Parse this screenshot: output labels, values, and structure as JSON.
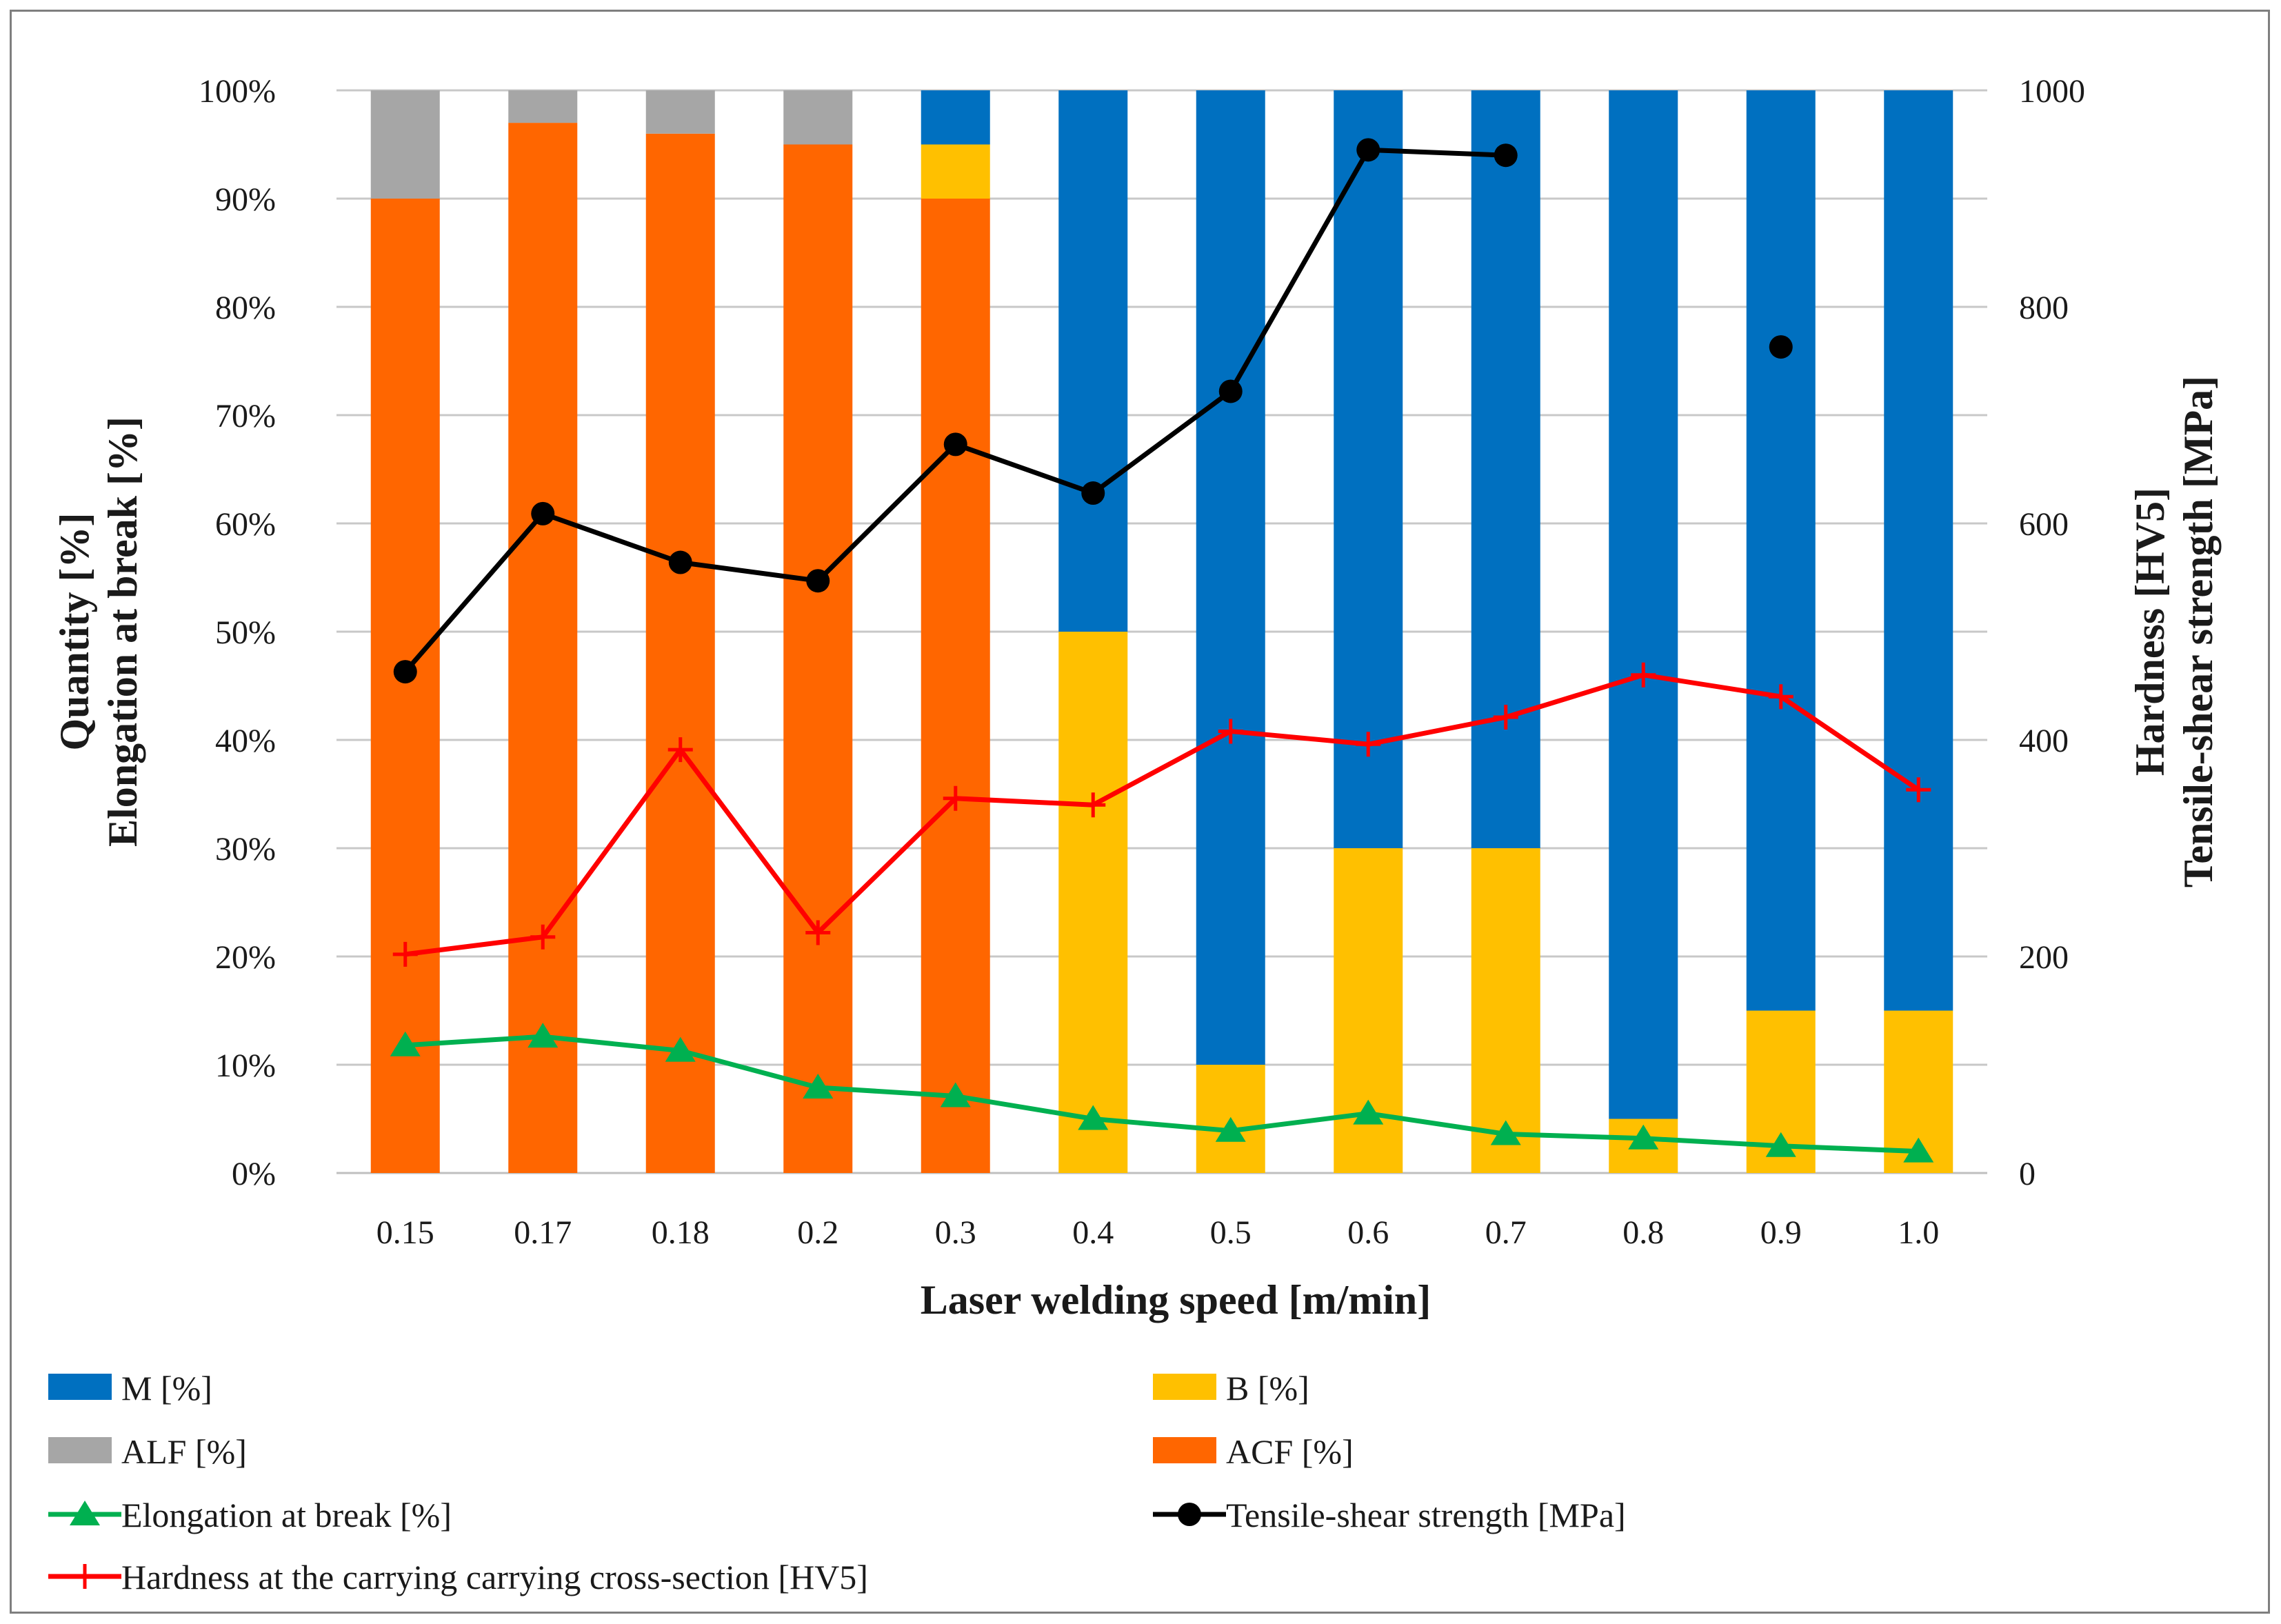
{
  "chart_data": {
    "type": "bar",
    "stacked": true,
    "x": [
      "0.15",
      "0.17",
      "0.18",
      "0.2",
      "0.3",
      "0.4",
      "0.5",
      "0.6",
      "0.7",
      "0.8",
      "0.9",
      "1.0"
    ],
    "xlabel": "Laser welding speed [m/min]",
    "ylabel_left": [
      "Quantity [%]",
      "Elongation at break [%]"
    ],
    "ylabel_right": [
      "Hardness [HV5]",
      "Tensile-shear strength [MPa]"
    ],
    "ylim_left": [
      0,
      100
    ],
    "ylim_right": [
      0,
      1000
    ],
    "yticks_left": [
      "0%",
      "10%",
      "20%",
      "30%",
      "40%",
      "50%",
      "60%",
      "70%",
      "80%",
      "90%",
      "100%"
    ],
    "yticks_right": [
      "0",
      "200",
      "400",
      "600",
      "800",
      "1000"
    ],
    "grid": true,
    "legend_position": "bottom",
    "bar_series": [
      {
        "name": "ACF [%]",
        "color": "#ff6600",
        "values": [
          90,
          97,
          96,
          95,
          90,
          0,
          0,
          0,
          0,
          0,
          0,
          0
        ]
      },
      {
        "name": "B [%]",
        "color": "#ffc000",
        "values": [
          0,
          0,
          0,
          0,
          5,
          50,
          10,
          30,
          30,
          5,
          15,
          15
        ]
      },
      {
        "name": "ALF [%]",
        "color": "#a6a6a6",
        "values": [
          10,
          3,
          4,
          5,
          0,
          0,
          0,
          0,
          0,
          0,
          0,
          0
        ]
      },
      {
        "name": "M [%]",
        "color": "#0070c0",
        "values": [
          0,
          0,
          0,
          0,
          5,
          50,
          90,
          70,
          70,
          95,
          85,
          85
        ]
      }
    ],
    "line_series": [
      {
        "name": "Elongation at break [%]",
        "axis": "left",
        "color": "#00b050",
        "marker": "triangle",
        "values": [
          11.8,
          12.6,
          11.3,
          7.9,
          7.1,
          5.0,
          3.9,
          5.5,
          3.6,
          3.2,
          2.5,
          2.0
        ]
      },
      {
        "name": "Tensile-shear strength [MPa]",
        "axis": "right",
        "color": "#000000",
        "marker": "circle",
        "values": [
          463,
          609,
          564,
          547,
          673,
          628,
          722,
          945,
          940,
          null,
          763,
          null
        ]
      },
      {
        "name": "Hardness at the carrying carrying cross-section [HV5]",
        "axis": "right",
        "color": "#ff0000",
        "marker": "plus",
        "values": [
          202,
          218,
          391,
          222,
          346,
          340,
          408,
          396,
          421,
          460,
          440,
          354
        ]
      }
    ],
    "legend": [
      {
        "label": "M [%]",
        "kind": "bar",
        "color": "#0070c0"
      },
      {
        "label": "B [%]",
        "kind": "bar",
        "color": "#ffc000"
      },
      {
        "label": "ALF [%]",
        "kind": "bar",
        "color": "#a6a6a6"
      },
      {
        "label": "ACF [%]",
        "kind": "bar",
        "color": "#ff6600"
      },
      {
        "label": "Elongation at break [%]",
        "kind": "line",
        "color": "#00b050",
        "marker": "triangle"
      },
      {
        "label": "Tensile-shear strength [MPa]",
        "kind": "line",
        "color": "#000000",
        "marker": "circle"
      },
      {
        "label": "Hardness at the carrying carrying cross-section [HV5]",
        "kind": "line",
        "color": "#ff0000",
        "marker": "plus"
      }
    ]
  }
}
